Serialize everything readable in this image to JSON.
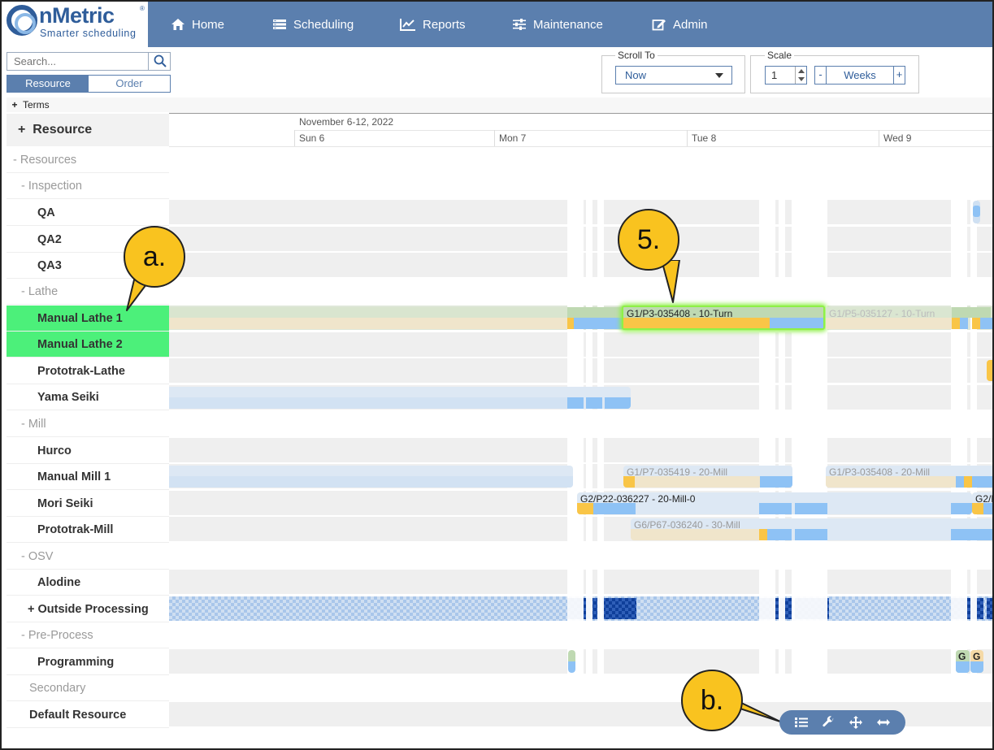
{
  "brand": {
    "name": "nMetric",
    "reg": "®",
    "tagline": "Smarter scheduling"
  },
  "nav": [
    {
      "label": "Home",
      "icon": "home-icon"
    },
    {
      "label": "Scheduling",
      "icon": "scheduling-icon"
    },
    {
      "label": "Reports",
      "icon": "reports-icon"
    },
    {
      "label": "Maintenance",
      "icon": "maintenance-icon"
    },
    {
      "label": "Admin",
      "icon": "admin-icon"
    }
  ],
  "search": {
    "placeholder": "Search..."
  },
  "view_toggle": {
    "resource": "Resource",
    "order": "Order",
    "active": "Resource"
  },
  "terms": {
    "expander": "+",
    "label": "Terms"
  },
  "resource_header": {
    "expander": "+",
    "label": "Resource"
  },
  "tree": [
    {
      "label": "- Resources",
      "type": "group"
    },
    {
      "label": "- Inspection",
      "type": "group"
    },
    {
      "label": "QA",
      "type": "leaf"
    },
    {
      "label": "QA2",
      "type": "leaf"
    },
    {
      "label": "QA3",
      "type": "leaf"
    },
    {
      "label": "- Lathe",
      "type": "group"
    },
    {
      "label": "Manual Lathe 1",
      "type": "leaf",
      "selected": true
    },
    {
      "label": "Manual Lathe 2",
      "type": "leaf",
      "selected": true
    },
    {
      "label": "Prototrak-Lathe",
      "type": "leaf"
    },
    {
      "label": "Yama Seiki",
      "type": "leaf"
    },
    {
      "label": "- Mill",
      "type": "group"
    },
    {
      "label": "Hurco",
      "type": "leaf"
    },
    {
      "label": "Manual Mill 1",
      "type": "leaf"
    },
    {
      "label": "Mori Seiki",
      "type": "leaf"
    },
    {
      "label": "Prototrak-Mill",
      "type": "leaf"
    },
    {
      "label": "- OSV",
      "type": "group"
    },
    {
      "label": "Alodine",
      "type": "leaf"
    },
    {
      "label": "+ Outside Processing",
      "type": "leaf"
    },
    {
      "label": "- Pre-Process",
      "type": "group"
    },
    {
      "label": "Programming",
      "type": "leaf"
    },
    {
      "label": "Secondary",
      "type": "group"
    },
    {
      "label": "Default Resource",
      "type": "leaf"
    }
  ],
  "scroll_to": {
    "legend": "Scroll To",
    "value": "Now"
  },
  "scale": {
    "legend": "Scale",
    "value": "1",
    "unit": "Weeks",
    "minus": "-",
    "plus": "+"
  },
  "timeline": {
    "week": "November 6-12, 2022",
    "days": [
      "Sun 6",
      "Mon 7",
      "Tue 8",
      "Wed 9"
    ]
  },
  "jobs": {
    "lathe1_main": "G1/P3-035408 - 10-Turn",
    "lathe1_next": "G1/P5-035127 - 10-Turn",
    "mill1_a": "G1/P7-035419 - 20-Mill",
    "mill1_b": "G1/P3-035408 - 20-Mill",
    "mori_a": "G2/P22-036227 - 20-Mill-0",
    "mori_b": "G2/P",
    "proto_a": "G6/P67-036240 - 30-Mill",
    "prog_a": "G",
    "prog_b": "G"
  },
  "callouts": {
    "a": "a.",
    "five": "5.",
    "b": "b."
  },
  "colors": {
    "nav": "#5b7fae",
    "selected": "#4cf07a",
    "callout": "#f9c31f",
    "highlight": "#8ef047"
  }
}
